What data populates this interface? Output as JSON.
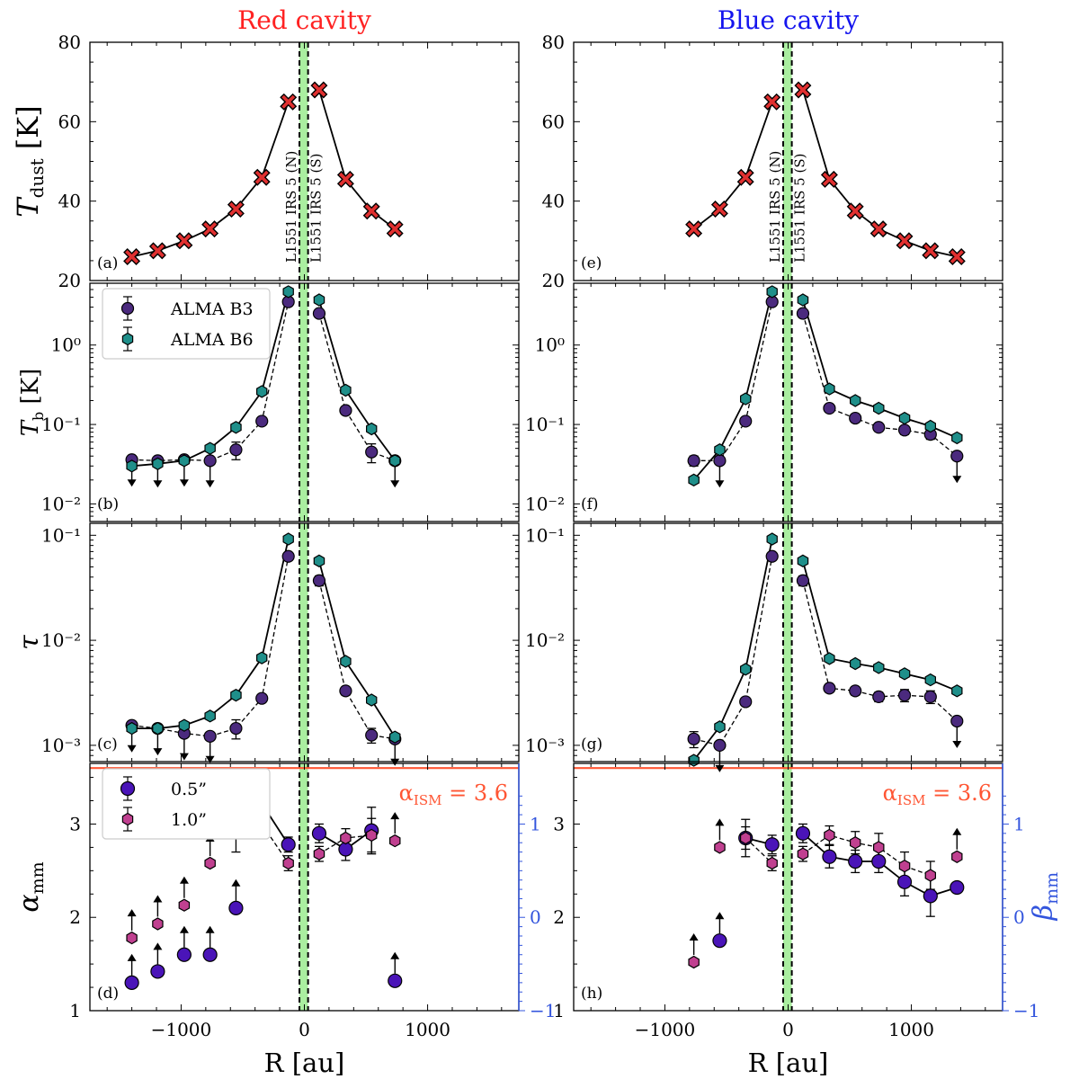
{
  "figure": {
    "titles": {
      "left": "Red cavity",
      "right": "Blue cavity"
    },
    "title_colors": {
      "left": "#ff2222",
      "right": "#1515ee"
    },
    "xlabel": "R [au]",
    "x_ticks": [
      -1000,
      0,
      1000
    ],
    "x_tick_labels": [
      "−1000",
      "0",
      "1000"
    ],
    "xlim": [
      -1740,
      1740
    ],
    "source_lines": {
      "labels": [
        "L1551 IRS 5 (N)",
        "L1551 IRS 5 (S)"
      ],
      "x": [
        -40,
        30
      ],
      "band": "#aaeea0"
    },
    "colors": {
      "tdust_marker": "#e03030",
      "b3": "#4b2a7e",
      "b6": "#1f8f8a",
      "alpha_05": "#4a14b8",
      "alpha_10": "#c04090",
      "ism_line": "#ff5533",
      "beta_axis": "#3355dd"
    }
  },
  "chart_data": [
    {
      "id": "a",
      "panel_label": "(a)",
      "type": "line",
      "cavity": "Red cavity",
      "ylabel": "T_dust [K]",
      "yscale": "linear",
      "ylim": [
        20,
        80
      ],
      "y_ticks": [
        20,
        40,
        60,
        80
      ],
      "y_tick_labels": [
        "20",
        "40",
        "60",
        "80"
      ],
      "series": [
        {
          "name": "T_dust",
          "x": [
            -1400,
            -1190,
            -975,
            -765,
            -555,
            -345,
            -130
          ],
          "y": [
            26,
            27.5,
            30,
            33,
            38,
            46,
            65
          ]
        },
        {
          "name": "T_dust",
          "x": [
            120,
            335,
            545,
            735
          ],
          "y": [
            68,
            45.5,
            37.5,
            33
          ]
        }
      ]
    },
    {
      "id": "b",
      "panel_label": "(b)",
      "type": "line",
      "cavity": "Red cavity",
      "ylabel": "T_b [K]",
      "yscale": "log",
      "ylim": [
        0.006,
        6
      ],
      "y_ticks": [
        0.01,
        0.1,
        1
      ],
      "y_tick_labels": [
        "10⁻²",
        "10⁻¹",
        "10⁰"
      ],
      "legend": [
        "ALMA B3",
        "ALMA B6"
      ],
      "series": [
        {
          "name": "ALMA B3",
          "x": [
            -1400,
            -1190,
            -975,
            -765,
            -555,
            -345,
            -130,
            120,
            335,
            545,
            735
          ],
          "y": [
            0.036,
            0.035,
            0.036,
            0.035,
            0.048,
            0.11,
            3.5,
            2.5,
            0.15,
            0.045,
            0.035
          ],
          "err": [
            0.005,
            0.005,
            0.005,
            0.006,
            0.012,
            0.01,
            0.2,
            0.15,
            0.015,
            0.012,
            0.005
          ],
          "upper_limit": [
            true,
            true,
            true,
            true,
            false,
            false,
            false,
            false,
            false,
            false,
            true
          ]
        },
        {
          "name": "ALMA B6",
          "x": [
            -1400,
            -1190,
            -975,
            -765,
            -555,
            -345,
            -130,
            120,
            335,
            545,
            735
          ],
          "y": [
            0.03,
            0.032,
            0.035,
            0.05,
            0.092,
            0.26,
            4.7,
            3.7,
            0.27,
            0.088,
            0.035
          ]
        }
      ]
    },
    {
      "id": "c",
      "panel_label": "(c)",
      "type": "line",
      "cavity": "Red cavity",
      "ylabel": "τ",
      "yscale": "log",
      "ylim": [
        0.0007,
        0.13
      ],
      "y_ticks": [
        0.001,
        0.01,
        0.1
      ],
      "y_tick_labels": [
        "10⁻³",
        "10⁻²",
        "10⁻¹"
      ],
      "series": [
        {
          "name": "ALMA B3",
          "x": [
            -1400,
            -1190,
            -975,
            -765,
            -555,
            -345,
            -130,
            120,
            335,
            545,
            735
          ],
          "y": [
            0.00155,
            0.00145,
            0.0013,
            0.00122,
            0.00145,
            0.0028,
            0.063,
            0.037,
            0.0033,
            0.00125,
            0.00115
          ],
          "err": [
            0.0002,
            0.0002,
            0.0002,
            0.0002,
            0.0003,
            0.0002,
            0.005,
            0.004,
            0.0003,
            0.0002,
            0.0001
          ],
          "upper_limit": [
            true,
            true,
            true,
            true,
            false,
            false,
            false,
            false,
            false,
            false,
            true
          ]
        },
        {
          "name": "ALMA B6",
          "x": [
            -1400,
            -1190,
            -975,
            -765,
            -555,
            -345,
            -130,
            120,
            335,
            545,
            735
          ],
          "y": [
            0.00145,
            0.00145,
            0.00155,
            0.0019,
            0.003,
            0.0068,
            0.092,
            0.057,
            0.0063,
            0.0027,
            0.0012
          ]
        }
      ]
    },
    {
      "id": "d",
      "panel_label": "(d)",
      "type": "scatter",
      "cavity": "Red cavity",
      "ylabel": "α_mm",
      "yscale": "linear",
      "ylim": [
        1,
        3.65
      ],
      "y_ticks": [
        1,
        2,
        3
      ],
      "y_tick_labels": [
        "1",
        "2",
        "3"
      ],
      "right_axis": {
        "ticks": [
          -1,
          0,
          1
        ],
        "labels": [
          "−1",
          "0",
          "1"
        ]
      },
      "ism_line": {
        "value": 3.6,
        "label": "α_ISM = 3.6"
      },
      "legend": [
        "0.5”",
        "1.0”"
      ],
      "series": [
        {
          "name": "0.5”",
          "x": [
            -1400,
            -1190,
            -975,
            -765,
            -555,
            -345,
            -130,
            120,
            335,
            545,
            735
          ],
          "y": [
            1.3,
            1.42,
            1.6,
            1.6,
            2.1,
            3.22,
            2.78,
            2.9,
            2.73,
            2.93,
            1.32
          ],
          "err": [
            0,
            0,
            0,
            0,
            0,
            0.15,
            0.08,
            0.1,
            0.12,
            0.25,
            0
          ],
          "lower_limit": [
            true,
            true,
            true,
            true,
            true,
            false,
            false,
            false,
            false,
            false,
            true
          ]
        },
        {
          "name": "1.0”",
          "x": [
            -1400,
            -1190,
            -975,
            -765,
            -555,
            -345,
            -130,
            120,
            335,
            545,
            735
          ],
          "y": [
            1.78,
            1.93,
            2.13,
            2.58,
            2.9,
            3.0,
            2.58,
            2.68,
            2.85,
            2.88,
            2.82
          ],
          "err": [
            0,
            0,
            0,
            0,
            0.2,
            0.12,
            0.08,
            0.08,
            0.1,
            0.18,
            0
          ],
          "lower_limit": [
            true,
            true,
            true,
            true,
            false,
            false,
            false,
            false,
            false,
            false,
            true
          ]
        }
      ]
    },
    {
      "id": "e",
      "panel_label": "(e)",
      "type": "line",
      "cavity": "Blue cavity",
      "ylabel": "",
      "yscale": "linear",
      "ylim": [
        20,
        80
      ],
      "y_ticks": [
        20,
        40,
        60,
        80
      ],
      "y_tick_labels": [
        "20",
        "40",
        "60",
        "80"
      ],
      "series": [
        {
          "name": "T_dust",
          "x": [
            -765,
            -555,
            -345,
            -130
          ],
          "y": [
            33,
            38,
            46,
            65
          ]
        },
        {
          "name": "T_dust",
          "x": [
            120,
            335,
            545,
            735,
            945,
            1155,
            1370
          ],
          "y": [
            68,
            45.5,
            37.5,
            33,
            30,
            27.5,
            26
          ]
        }
      ]
    },
    {
      "id": "f",
      "panel_label": "(f)",
      "type": "line",
      "cavity": "Blue cavity",
      "ylabel": "",
      "yscale": "log",
      "ylim": [
        0.006,
        6
      ],
      "y_ticks": [
        0.01,
        0.1,
        1
      ],
      "y_tick_labels": [
        "10⁻²",
        "10⁻¹",
        "10⁰"
      ],
      "series": [
        {
          "name": "ALMA B3",
          "x": [
            -765,
            -555,
            -345,
            -130,
            120,
            335,
            545,
            735,
            945,
            1155,
            1370
          ],
          "y": [
            0.035,
            0.035,
            0.11,
            3.5,
            2.5,
            0.16,
            0.12,
            0.092,
            0.085,
            0.075,
            0.04
          ],
          "err": [
            0.005,
            0.01,
            0.01,
            0.2,
            0.15,
            0.012,
            0.01,
            0.01,
            0.01,
            0.01,
            0.005
          ],
          "upper_limit": [
            false,
            true,
            false,
            false,
            false,
            false,
            false,
            false,
            false,
            false,
            true
          ]
        },
        {
          "name": "ALMA B6",
          "x": [
            -765,
            -555,
            -345,
            -130,
            120,
            335,
            545,
            735,
            945,
            1155,
            1370
          ],
          "y": [
            0.02,
            0.048,
            0.21,
            4.7,
            3.7,
            0.28,
            0.2,
            0.16,
            0.12,
            0.095,
            0.068
          ]
        }
      ]
    },
    {
      "id": "g",
      "panel_label": "(g)",
      "type": "line",
      "cavity": "Blue cavity",
      "ylabel": "",
      "yscale": "log",
      "ylim": [
        0.0007,
        0.13
      ],
      "y_ticks": [
        0.001,
        0.01,
        0.1
      ],
      "y_tick_labels": [
        "10⁻³",
        "10⁻²",
        "10⁻¹"
      ],
      "series": [
        {
          "name": "ALMA B3",
          "x": [
            -765,
            -555,
            -345,
            -130,
            120,
            335,
            545,
            735,
            945,
            1155,
            1370
          ],
          "y": [
            0.00115,
            0.001,
            0.0026,
            0.063,
            0.037,
            0.0035,
            0.0033,
            0.0029,
            0.003,
            0.0029,
            0.0017
          ],
          "err": [
            0.0002,
            0.0002,
            0.0002,
            0.005,
            0.004,
            0.0003,
            0.0003,
            0.0003,
            0.0004,
            0.0004,
            0.0002
          ],
          "upper_limit": [
            false,
            true,
            false,
            false,
            false,
            false,
            false,
            false,
            false,
            false,
            true
          ]
        },
        {
          "name": "ALMA B6",
          "x": [
            -765,
            -555,
            -345,
            -130,
            120,
            335,
            545,
            735,
            945,
            1155,
            1370
          ],
          "y": [
            0.00072,
            0.0015,
            0.0053,
            0.092,
            0.057,
            0.0067,
            0.006,
            0.0055,
            0.0048,
            0.0042,
            0.0033
          ]
        }
      ]
    },
    {
      "id": "h",
      "panel_label": "(h)",
      "type": "scatter",
      "cavity": "Blue cavity",
      "ylabel": "β_mm",
      "yscale": "linear",
      "ylim": [
        1,
        3.65
      ],
      "y_ticks": [
        1,
        2,
        3
      ],
      "y_tick_labels": [
        "1",
        "2",
        "3"
      ],
      "right_axis": {
        "ticks": [
          -1,
          0,
          1
        ],
        "labels": [
          "−1",
          "0",
          "1"
        ]
      },
      "ism_line": {
        "value": 3.6,
        "label": "α_ISM = 3.6"
      },
      "series": [
        {
          "name": "0.5”",
          "x": [
            -555,
            -345,
            -130,
            120,
            335,
            545,
            735,
            945,
            1155,
            1370
          ],
          "y": [
            1.75,
            2.85,
            2.78,
            2.9,
            2.65,
            2.6,
            2.6,
            2.38,
            2.23,
            2.32
          ],
          "err": [
            0,
            0.2,
            0.1,
            0.1,
            0.12,
            0.12,
            0.12,
            0.15,
            0.22,
            0
          ],
          "lower_limit": [
            true,
            false,
            false,
            false,
            false,
            false,
            false,
            false,
            false,
            false
          ]
        },
        {
          "name": "1.0”",
          "x": [
            -765,
            -555,
            -345,
            -130,
            120,
            335,
            545,
            735,
            945,
            1155,
            1370
          ],
          "y": [
            1.52,
            2.75,
            2.85,
            2.58,
            2.68,
            2.88,
            2.8,
            2.75,
            2.55,
            2.45,
            2.65
          ],
          "err": [
            0,
            0,
            0.12,
            0.08,
            0.08,
            0.1,
            0.12,
            0.15,
            0.15,
            0.15,
            0
          ],
          "lower_limit": [
            true,
            true,
            false,
            false,
            false,
            false,
            false,
            false,
            false,
            false,
            true
          ]
        }
      ]
    }
  ]
}
